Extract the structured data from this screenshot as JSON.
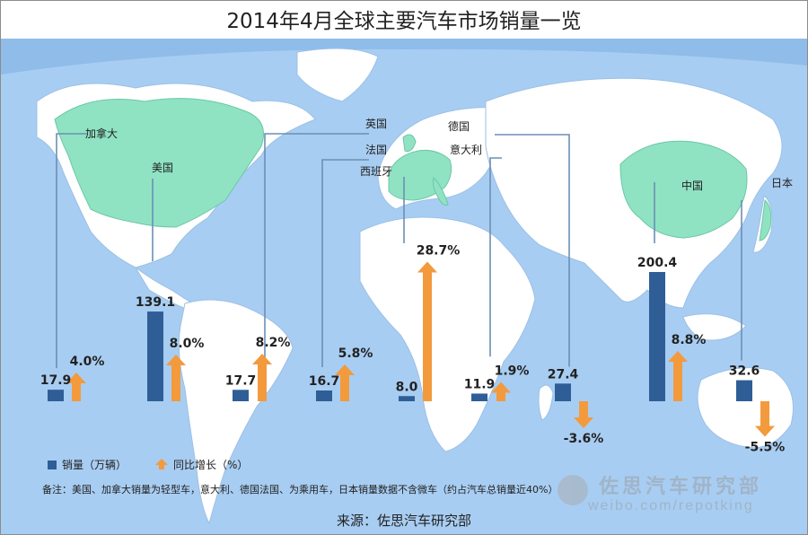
{
  "title": "2014年4月全球主要汽车市场销量一览",
  "legend": {
    "sales_label": "销量（万辆）",
    "growth_label": "同比增长（%）"
  },
  "note": "备注：美国、加拿大销量为轻型车，意大利、德国法国、为乘用车，日本销量数据不含微车（约占汽车总销量近40%）",
  "source": "来源：佐思汽车研究部",
  "watermark": {
    "name": "佐思汽车研究部",
    "url": "weibo.com/repotking"
  },
  "colors": {
    "sales": "#2f5e97",
    "growth": "#f39a3d",
    "ocean": "#a8cdf2",
    "land": "#ffffff",
    "highlight": "#8fe3c3",
    "connector": "#6c8fb3"
  },
  "chart_data": {
    "type": "bar",
    "title": "2014年4月全球主要汽车市场销量一览",
    "categories": [
      "加拿大",
      "美国",
      "英国",
      "法国",
      "西班牙",
      "德国",
      "意大利",
      "中国",
      "日本"
    ],
    "series": [
      {
        "name": "销量（万辆）",
        "values": [
          17.9,
          139.1,
          17.7,
          16.7,
          8.0,
          11.9,
          27.4,
          200.4,
          32.6
        ],
        "labels": [
          "17.9",
          "139.1",
          "17.7",
          "16.7",
          "8.0",
          "11.9",
          "27.4",
          "200.4",
          "32.6"
        ]
      },
      {
        "name": "同比增长（%）",
        "values": [
          4.0,
          8.0,
          8.2,
          5.8,
          28.7,
          1.9,
          -3.6,
          8.8,
          -5.5
        ],
        "labels": [
          "4.0%",
          "8.0%",
          "8.2%",
          "5.8%",
          "28.7%",
          "1.9%",
          "-3.6%",
          "8.8%",
          "-5.5%"
        ]
      }
    ]
  }
}
